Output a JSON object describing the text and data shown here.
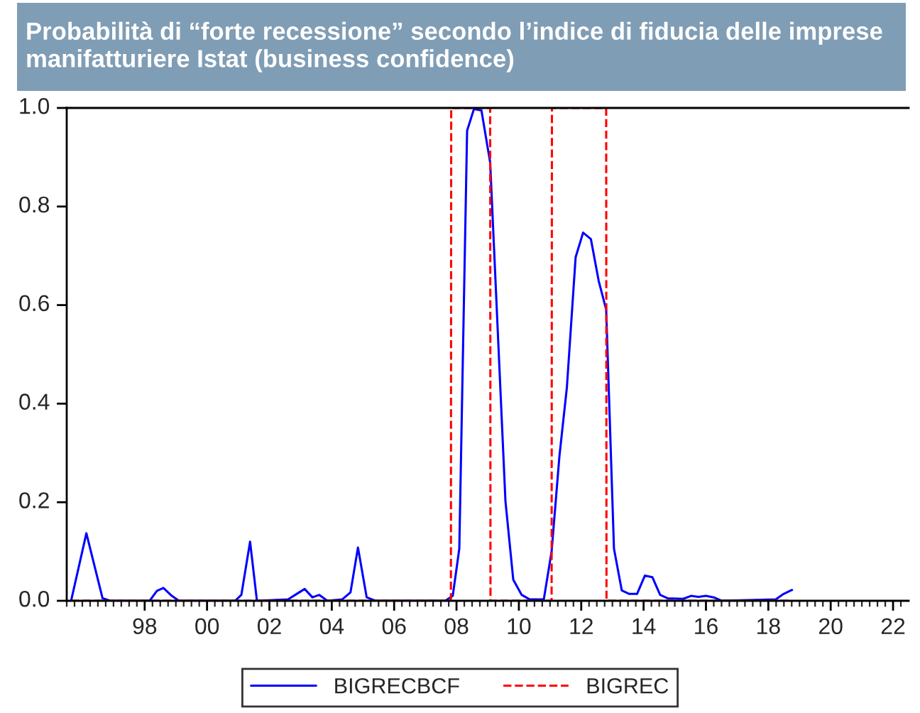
{
  "chart_data": {
    "type": "line",
    "title": "Probabilità di “forte recessione” secondo l’indice di fiducia delle imprese manifatturiere Istat (business confidence)",
    "series": [
      {
        "name": "BIGRECBCF",
        "color": "#0000ff",
        "line_style": "solid",
        "x": [
          1995.64,
          1996.13,
          1996.65,
          1996.9,
          1998.16,
          1998.39,
          1998.6,
          1998.87,
          1999.1,
          2000.9,
          2001.1,
          2001.38,
          2001.6,
          2002.6,
          2002.9,
          2003.13,
          2003.38,
          2003.6,
          2003.86,
          2004.34,
          2004.6,
          2004.84,
          2005.12,
          2005.4,
          2007.64,
          2007.88,
          2008.09,
          2008.34,
          2008.56,
          2008.8,
          2009.08,
          2009.35,
          2009.57,
          2009.82,
          2010.09,
          2010.34,
          2010.8,
          2011.05,
          2011.3,
          2011.54,
          2011.82,
          2012.06,
          2012.31,
          2012.56,
          2012.8,
          2013.05,
          2013.3,
          2013.54,
          2013.79,
          2014.04,
          2014.28,
          2014.53,
          2014.78,
          2015.27,
          2015.52,
          2015.76,
          2016.0,
          2016.25,
          2016.5,
          2018.24,
          2018.49,
          2018.76
        ],
        "values": [
          0,
          0.137,
          0.005,
          0,
          0,
          0.02,
          0.026,
          0.01,
          0,
          0,
          0.012,
          0.12,
          0,
          0.003,
          0.015,
          0.024,
          0.007,
          0.012,
          0,
          0.003,
          0.017,
          0.108,
          0.007,
          0,
          0,
          0.01,
          0.106,
          0.954,
          0.998,
          0.995,
          0.889,
          0.51,
          0.202,
          0.043,
          0.012,
          0.003,
          0.003,
          0.1,
          0.293,
          0.433,
          0.697,
          0.747,
          0.734,
          0.649,
          0.591,
          0.106,
          0.021,
          0.014,
          0.014,
          0.051,
          0.048,
          0.012,
          0.005,
          0.004,
          0.01,
          0.008,
          0.01,
          0.007,
          0,
          0.003,
          0.014,
          0.022
        ]
      },
      {
        "name": "BIGREC",
        "color": "#ff0000",
        "line_style": "dashed",
        "x": [
          1995.64,
          2007.82,
          2007.83,
          2009.08,
          2009.09,
          2011.05,
          2011.06,
          2012.8,
          2012.81,
          2018.76
        ],
        "values": [
          0,
          0,
          1,
          1,
          0,
          0,
          1,
          1,
          0,
          0
        ]
      }
    ],
    "xlim": [
      1995.5,
      2022.5
    ],
    "xticks": [
      {
        "value": 1998,
        "label": "98"
      },
      {
        "value": 2000,
        "label": "00"
      },
      {
        "value": 2002,
        "label": "02"
      },
      {
        "value": 2004,
        "label": "04"
      },
      {
        "value": 2006,
        "label": "06"
      },
      {
        "value": 2008,
        "label": "08"
      },
      {
        "value": 2010,
        "label": "10"
      },
      {
        "value": 2012,
        "label": "12"
      },
      {
        "value": 2014,
        "label": "14"
      },
      {
        "value": 2016,
        "label": "16"
      },
      {
        "value": 2018,
        "label": "18"
      },
      {
        "value": 2020,
        "label": "20"
      },
      {
        "value": 2022,
        "label": "22"
      }
    ],
    "ylim": [
      0,
      1
    ],
    "yticks": [
      {
        "value": 0,
        "label": "0.0"
      },
      {
        "value": 0.2,
        "label": "0.2"
      },
      {
        "value": 0.4,
        "label": "0.4"
      },
      {
        "value": 0.6,
        "label": "0.6"
      },
      {
        "value": 0.8,
        "label": "0.8"
      },
      {
        "value": 1,
        "label": "1.0"
      }
    ],
    "grid": false,
    "legend": "bottom",
    "marker": "none"
  }
}
